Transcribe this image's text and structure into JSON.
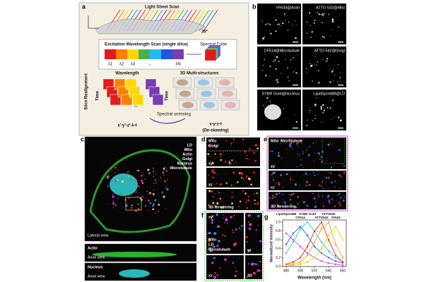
{
  "panel_a": {
    "label": "a",
    "light_sheet": "Light Sheet Scan",
    "angle": "30°",
    "excitation": "Excitation Wavelength Scan (single slice)",
    "lambdas": [
      "λ1",
      "λ2",
      "λ3",
      "...",
      "λN"
    ],
    "spectral_cube": "Spectral Cube",
    "slice_realignment": "Slice Realignment",
    "wavelength": "Wavelength",
    "time": "Time",
    "multi": "3D Multi-structures",
    "unmixing": "Spectral unmixing",
    "raw_dims": "x'-y'-z'-λ-t",
    "out_dims": "x-y-z-t",
    "deskew": "(De-skewing)"
  },
  "panel_b": {
    "label": "b",
    "images": [
      "YF633@Actin",
      "ATTO 532@Mito",
      "CF514@Microtubule",
      "ATTO 542@Golgi",
      "SYBR Gold@Nucleus",
      "LipidSpot488@LD"
    ]
  },
  "panel_c": {
    "label": "c",
    "legend": [
      {
        "text": "LD",
        "color": "#ff33ff"
      },
      {
        "text": "Mito",
        "color": "#ff2a2a"
      },
      {
        "text": "Actin",
        "color": "#33dd33"
      },
      {
        "text": "Golgi",
        "color": "#ffee33"
      },
      {
        "text": "Nucleus",
        "color": "#33e6e6"
      },
      {
        "text": "Microtubule",
        "color": "#5b8cff"
      }
    ],
    "lateral": "Lateral view",
    "axial": [
      {
        "channel": "Actin",
        "color": "#33dd33",
        "view": "Axial view"
      },
      {
        "channel": "Nucleus",
        "color": "#33e6e6",
        "view": "Axial view"
      }
    ]
  },
  "panel_d": {
    "label": "d",
    "channels": [
      {
        "text": "Mito",
        "color": "#ff2a2a"
      },
      {
        "text": "Golgi",
        "color": "#ffee33"
      }
    ],
    "views": [
      "xy",
      "xz",
      "3D Rendering"
    ]
  },
  "panel_e": {
    "label": "e",
    "channels": [
      {
        "text": "Mito",
        "color": "#ff2a2a"
      },
      {
        "text": "Microtubule",
        "color": "#5b8cff"
      }
    ],
    "views": [
      "xy",
      "xz",
      "3D Rendering"
    ]
  },
  "panel_f": {
    "label": "f",
    "channels": [
      {
        "text": "Mito",
        "color": "#ff2a2a"
      },
      {
        "text": "LD",
        "color": "#ff33ff"
      },
      {
        "text": "Microtubule",
        "color": "#5b8cff"
      }
    ],
    "views": [
      "xy",
      "yz",
      "xz",
      "3D"
    ]
  },
  "panel_g": {
    "label": "g",
    "type": "line",
    "x_label": "Wavelength (nm)",
    "y_label": "Normalized Intensity",
    "x": [
      480,
      490,
      500,
      510,
      520,
      530,
      540,
      550,
      560
    ],
    "xlim": [
      475,
      565
    ],
    "ylim": [
      0,
      1.05
    ],
    "xticks": [
      480,
      500,
      520,
      540,
      560
    ],
    "yticks": [
      {
        "value": 0,
        "label": "0.0"
      },
      0.2,
      0.4,
      0.6,
      0.8,
      {
        "value": 1,
        "label": "1.0"
      }
    ],
    "series": [
      {
        "name": "LipidSpot488",
        "color": "#e040e0",
        "values": [
          0.75,
          0.6,
          0.45,
          0.3,
          0.2,
          0.12,
          0.08,
          0.05,
          0.03
        ]
      },
      {
        "name": "CF514",
        "color": "#3355ff",
        "values": [
          0.5,
          0.75,
          0.9,
          0.7,
          0.45,
          0.3,
          0.2,
          0.12,
          0.08
        ]
      },
      {
        "name": "SYBR Gold",
        "color": "#22cccc",
        "values": [
          0.3,
          0.55,
          0.85,
          1.0,
          0.8,
          0.55,
          0.35,
          0.2,
          0.1
        ]
      },
      {
        "name": "ATTO532",
        "color": "#ee2222",
        "values": [
          0.05,
          0.1,
          0.2,
          0.45,
          0.8,
          1.0,
          0.6,
          0.25,
          0.1
        ]
      },
      {
        "name": "ATTO542",
        "color": "#ff9900",
        "values": [
          0.03,
          0.05,
          0.1,
          0.25,
          0.55,
          0.85,
          1.0,
          0.5,
          0.2
        ]
      },
      {
        "name": "YF633",
        "color": "#e6d800",
        "values": [
          0.02,
          0.03,
          0.05,
          0.1,
          0.2,
          0.4,
          0.7,
          0.9,
          0.6
        ]
      }
    ]
  }
}
